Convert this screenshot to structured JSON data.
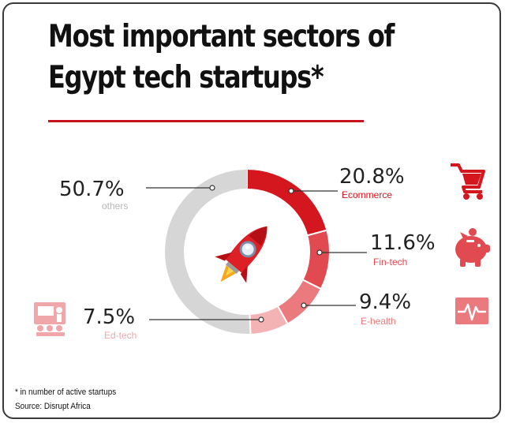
{
  "title_line1": "Most important sectors of",
  "title_line2": "Egypt tech startups*",
  "chart_data": {
    "type": "pie",
    "style": "donut",
    "title": "Most important sectors of Egypt tech startups*",
    "series": [
      {
        "label": "Ecommerce",
        "value": 20.8,
        "display": "20.8%",
        "color": "#d4161e",
        "icon": "shopping-cart-icon"
      },
      {
        "label": "Fin-tech",
        "value": 11.6,
        "display": "11.6%",
        "color": "#e04a50",
        "icon": "piggy-bank-icon"
      },
      {
        "label": "E-health",
        "value": 9.4,
        "display": "9.4%",
        "color": "#ea7a7e",
        "icon": "heartbeat-icon"
      },
      {
        "label": "Ed-tech",
        "value": 7.5,
        "display": "7.5%",
        "color": "#f3b2b4",
        "icon": "classroom-icon"
      },
      {
        "label": "others",
        "value": 50.7,
        "display": "50.7%",
        "color": "#d6d6d6"
      }
    ],
    "center_icon": "rocket-icon"
  },
  "footnote": "* in number of active startups",
  "source": "Source: Disrupt Africa"
}
